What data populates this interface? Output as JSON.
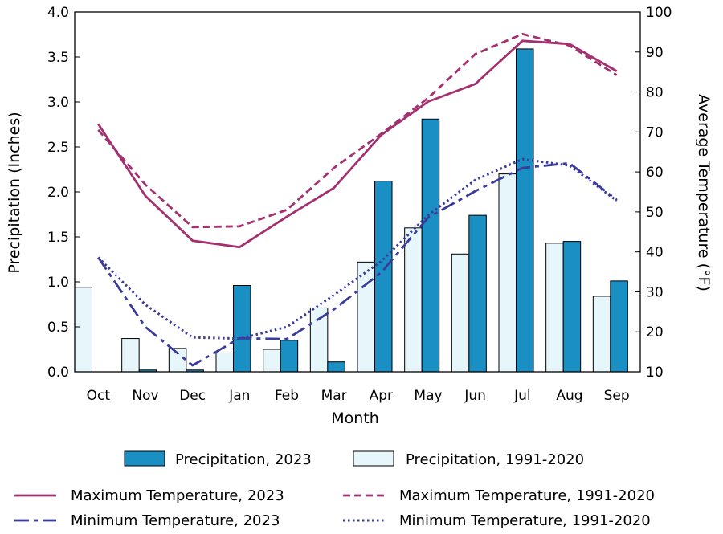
{
  "chart_data": {
    "type": "bar",
    "xlabel": "Month",
    "ylabel_left": "Precipitation (Inches)",
    "ylabel_right": "Average Temperature (°F)",
    "ylim_left": [
      0,
      4
    ],
    "ylim_right": [
      10,
      100
    ],
    "yticks_left": [
      "0.0",
      "0.5",
      "1.0",
      "1.5",
      "2.0",
      "2.5",
      "3.0",
      "3.5",
      "4.0"
    ],
    "yticks_right": [
      "10",
      "20",
      "30",
      "40",
      "50",
      "60",
      "70",
      "80",
      "90",
      "100"
    ],
    "categories": [
      "Oct",
      "Nov",
      "Dec",
      "Jan",
      "Feb",
      "Mar",
      "Apr",
      "May",
      "Jun",
      "Jul",
      "Aug",
      "Sep"
    ],
    "grid": false,
    "legend_position": "bottom",
    "bar_series": [
      {
        "name": "Precipitation, 2023",
        "color": "#1a8fc4",
        "values": [
          0.0,
          0.02,
          0.02,
          0.96,
          0.35,
          0.11,
          2.12,
          2.81,
          1.74,
          3.59,
          1.45,
          1.01
        ]
      },
      {
        "name": "Precipitation, 1991-2020",
        "color": "#e6f6fb",
        "values": [
          0.94,
          0.37,
          0.26,
          0.21,
          0.25,
          0.71,
          1.22,
          1.6,
          1.31,
          2.2,
          1.43,
          0.84
        ]
      }
    ],
    "line_series": [
      {
        "name": "Maximum Temperature, 2023",
        "color": "#a3306f",
        "style": "solid",
        "values": [
          72.0,
          54.0,
          42.8,
          41.2,
          48.8,
          56.0,
          69.2,
          77.6,
          82.0,
          92.8,
          92.0,
          85.2
        ]
      },
      {
        "name": "Maximum Temperature, 1991-2020",
        "color": "#a3306f",
        "style": "dashed",
        "values": [
          70.5,
          56.8,
          46.2,
          46.4,
          50.5,
          61.0,
          69.5,
          78.5,
          89.5,
          94.5,
          91.6,
          84.2
        ]
      },
      {
        "name": "Minimum Temperature, 2023",
        "color": "#3a3b9a",
        "style": "dashdot",
        "values": [
          38.6,
          21.2,
          11.6,
          18.4,
          18.2,
          25.6,
          34.8,
          48.6,
          55.2,
          61.0,
          62.2,
          53.0
        ]
      },
      {
        "name": "Minimum Temperature, 1991-2020",
        "color": "#3a3b9a",
        "style": "dotted",
        "values": [
          38.6,
          26.8,
          18.6,
          18.3,
          21.2,
          29.2,
          37.6,
          49.2,
          58.0,
          63.2,
          61.6,
          52.8
        ]
      }
    ],
    "legend_rows": [
      [
        "Precipitation, 2023",
        "Precipitation, 1991-2020"
      ],
      [
        "Maximum Temperature, 2023",
        "Maximum Temperature, 1991-2020"
      ],
      [
        "Minimum Temperature, 2023",
        "Minimum Temperature, 1991-2020"
      ]
    ]
  }
}
